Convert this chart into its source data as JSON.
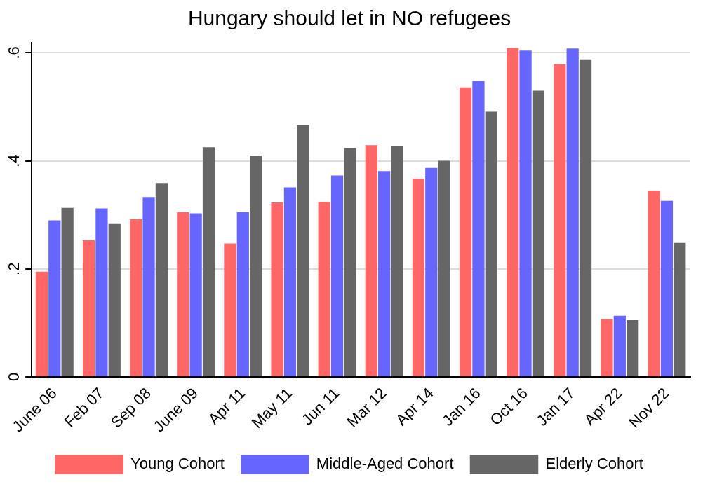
{
  "chart_data": {
    "type": "bar",
    "title": "Hungary should let in NO refugees",
    "categories": [
      "June 06",
      "Feb 07",
      "Sep 08",
      "June 09",
      "Apr 11",
      "May 11",
      "Jun 11",
      "Mar 12",
      "Apr 14",
      "Jan 16",
      "Oct 16",
      "Jan 17",
      "Apr 22",
      "Nov 22"
    ],
    "series": [
      {
        "name": "Young Cohort",
        "color": "#ff6666",
        "values": [
          0.195,
          0.253,
          0.292,
          0.305,
          0.247,
          0.323,
          0.324,
          0.429,
          0.367,
          0.536,
          0.609,
          0.579,
          0.107,
          0.345
        ]
      },
      {
        "name": "Middle-Aged Cohort",
        "color": "#6666ff",
        "values": [
          0.29,
          0.312,
          0.333,
          0.303,
          0.305,
          0.351,
          0.373,
          0.381,
          0.387,
          0.548,
          0.604,
          0.608,
          0.113,
          0.326
        ]
      },
      {
        "name": "Elderly Cohort",
        "color": "#666666",
        "values": [
          0.313,
          0.283,
          0.359,
          0.425,
          0.41,
          0.466,
          0.424,
          0.428,
          0.4,
          0.491,
          0.53,
          0.588,
          0.105,
          0.248
        ]
      }
    ],
    "yticks": [
      0,
      {
        "value": 0.2,
        "label": ".2"
      },
      {
        "value": 0.4,
        "label": ".4"
      },
      {
        "value": 0.6,
        "label": ".6"
      }
    ],
    "ylim": [
      0,
      0.62
    ],
    "grid": "y",
    "legend": "bottom"
  }
}
